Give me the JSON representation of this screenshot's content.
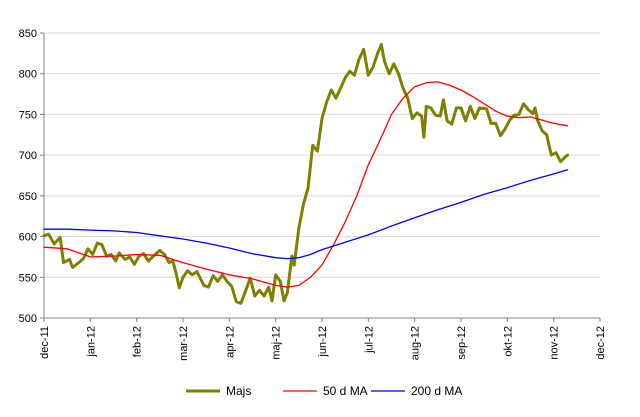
{
  "chart_data": {
    "type": "line",
    "title": "",
    "xlabel": "",
    "ylabel": "",
    "ylim": [
      500,
      850
    ],
    "yticks": [
      500,
      550,
      600,
      650,
      700,
      750,
      800,
      850
    ],
    "x_ticks": [
      {
        "label": "dec-11",
        "x": 0
      },
      {
        "label": "jan-12",
        "x": 1
      },
      {
        "label": "feb-12",
        "x": 2
      },
      {
        "label": "mar-12",
        "x": 3
      },
      {
        "label": "apr-12",
        "x": 4
      },
      {
        "label": "maj-12",
        "x": 5
      },
      {
        "label": "jun-12",
        "x": 6
      },
      {
        "label": "jul-12",
        "x": 7
      },
      {
        "label": "aug-12",
        "x": 8
      },
      {
        "label": "sep-12",
        "x": 9
      },
      {
        "label": "okt-12",
        "x": 10
      },
      {
        "label": "nov-12",
        "x": 11
      },
      {
        "label": "dec-12",
        "x": 12
      }
    ],
    "xlim": [
      0,
      12
    ],
    "grid": "horizontal",
    "legend_position": "bottom",
    "series": [
      {
        "name": "Majs",
        "color": "#808000",
        "width": 3,
        "points": [
          [
            0.0,
            601
          ],
          [
            0.1,
            603
          ],
          [
            0.22,
            591
          ],
          [
            0.35,
            599
          ],
          [
            0.42,
            568
          ],
          [
            0.55,
            572
          ],
          [
            0.62,
            562
          ],
          [
            0.75,
            568
          ],
          [
            0.85,
            573
          ],
          [
            0.95,
            585
          ],
          [
            1.05,
            578
          ],
          [
            1.15,
            592
          ],
          [
            1.25,
            590
          ],
          [
            1.35,
            576
          ],
          [
            1.45,
            578
          ],
          [
            1.55,
            570
          ],
          [
            1.62,
            580
          ],
          [
            1.75,
            572
          ],
          [
            1.85,
            575
          ],
          [
            1.95,
            566
          ],
          [
            2.05,
            576
          ],
          [
            2.15,
            579
          ],
          [
            2.25,
            570
          ],
          [
            2.4,
            578
          ],
          [
            2.5,
            583
          ],
          [
            2.6,
            578
          ],
          [
            2.7,
            568
          ],
          [
            2.78,
            570
          ],
          [
            2.85,
            555
          ],
          [
            2.92,
            537
          ],
          [
            3.0,
            550
          ],
          [
            3.1,
            558
          ],
          [
            3.2,
            553
          ],
          [
            3.3,
            557
          ],
          [
            3.45,
            540
          ],
          [
            3.55,
            538
          ],
          [
            3.65,
            552
          ],
          [
            3.75,
            545
          ],
          [
            3.85,
            553
          ],
          [
            3.95,
            545
          ],
          [
            4.05,
            539
          ],
          [
            4.15,
            520
          ],
          [
            4.25,
            518
          ],
          [
            4.35,
            533
          ],
          [
            4.45,
            549
          ],
          [
            4.55,
            527
          ],
          [
            4.65,
            534
          ],
          [
            4.75,
            527
          ],
          [
            4.85,
            538
          ],
          [
            4.92,
            521
          ],
          [
            5.0,
            553
          ],
          [
            5.1,
            545
          ],
          [
            5.18,
            521
          ],
          [
            5.25,
            531
          ],
          [
            5.35,
            576
          ],
          [
            5.4,
            565
          ],
          [
            5.5,
            610
          ],
          [
            5.6,
            640
          ],
          [
            5.7,
            660
          ],
          [
            5.8,
            712
          ],
          [
            5.9,
            705
          ],
          [
            6.0,
            745
          ],
          [
            6.1,
            765
          ],
          [
            6.2,
            780
          ],
          [
            6.3,
            770
          ],
          [
            6.4,
            782
          ],
          [
            6.5,
            795
          ],
          [
            6.6,
            803
          ],
          [
            6.7,
            798
          ],
          [
            6.8,
            818
          ],
          [
            6.9,
            830
          ],
          [
            7.0,
            798
          ],
          [
            7.1,
            808
          ],
          [
            7.2,
            825
          ],
          [
            7.28,
            836
          ],
          [
            7.35,
            815
          ],
          [
            7.45,
            800
          ],
          [
            7.55,
            812
          ],
          [
            7.65,
            800
          ],
          [
            7.75,
            782
          ],
          [
            7.85,
            770
          ],
          [
            7.95,
            745
          ],
          [
            8.05,
            752
          ],
          [
            8.15,
            748
          ],
          [
            8.2,
            722
          ],
          [
            8.25,
            760
          ],
          [
            8.35,
            758
          ],
          [
            8.45,
            749
          ],
          [
            8.55,
            748
          ],
          [
            8.62,
            768
          ],
          [
            8.7,
            742
          ],
          [
            8.8,
            738
          ],
          [
            8.9,
            758
          ],
          [
            9.0,
            758
          ],
          [
            9.1,
            742
          ],
          [
            9.2,
            760
          ],
          [
            9.3,
            745
          ],
          [
            9.4,
            758
          ],
          [
            9.55,
            757
          ],
          [
            9.65,
            739
          ],
          [
            9.75,
            739
          ],
          [
            9.85,
            724
          ],
          [
            9.95,
            732
          ],
          [
            10.05,
            743
          ],
          [
            10.15,
            749
          ],
          [
            10.25,
            750
          ],
          [
            10.35,
            763
          ],
          [
            10.45,
            756
          ],
          [
            10.55,
            751
          ],
          [
            10.6,
            758
          ],
          [
            10.65,
            743
          ],
          [
            10.75,
            730
          ],
          [
            10.85,
            725
          ],
          [
            10.95,
            700
          ],
          [
            11.05,
            703
          ],
          [
            11.15,
            692
          ],
          [
            11.25,
            698
          ],
          [
            11.3,
            700
          ]
        ]
      },
      {
        "name": "50 d MA",
        "color": "#ff0000",
        "width": 1.3,
        "points": [
          [
            0.0,
            587
          ],
          [
            0.5,
            585
          ],
          [
            1.0,
            575
          ],
          [
            1.5,
            576
          ],
          [
            2.0,
            578
          ],
          [
            2.5,
            577
          ],
          [
            3.0,
            568
          ],
          [
            3.5,
            560
          ],
          [
            4.0,
            553
          ],
          [
            4.5,
            548
          ],
          [
            5.0,
            540
          ],
          [
            5.25,
            538
          ],
          [
            5.5,
            540
          ],
          [
            5.75,
            550
          ],
          [
            6.0,
            565
          ],
          [
            6.25,
            590
          ],
          [
            6.5,
            618
          ],
          [
            6.75,
            650
          ],
          [
            7.0,
            688
          ],
          [
            7.25,
            718
          ],
          [
            7.5,
            750
          ],
          [
            7.75,
            770
          ],
          [
            8.0,
            784
          ],
          [
            8.25,
            789
          ],
          [
            8.5,
            790
          ],
          [
            8.75,
            786
          ],
          [
            9.0,
            780
          ],
          [
            9.25,
            772
          ],
          [
            9.5,
            763
          ],
          [
            9.75,
            754
          ],
          [
            10.0,
            748
          ],
          [
            10.25,
            746
          ],
          [
            10.5,
            747
          ],
          [
            10.75,
            743
          ],
          [
            11.0,
            739
          ],
          [
            11.3,
            736
          ]
        ]
      },
      {
        "name": "200 d MA",
        "color": "#0000ff",
        "width": 1.3,
        "points": [
          [
            0.0,
            609
          ],
          [
            0.5,
            609
          ],
          [
            1.0,
            608
          ],
          [
            1.5,
            607
          ],
          [
            2.0,
            605
          ],
          [
            2.5,
            601
          ],
          [
            3.0,
            597
          ],
          [
            3.5,
            592
          ],
          [
            4.0,
            586
          ],
          [
            4.5,
            579
          ],
          [
            5.0,
            574
          ],
          [
            5.25,
            573
          ],
          [
            5.5,
            574
          ],
          [
            5.75,
            578
          ],
          [
            6.0,
            584
          ],
          [
            6.5,
            593
          ],
          [
            7.0,
            602
          ],
          [
            7.5,
            613
          ],
          [
            8.0,
            623
          ],
          [
            8.5,
            633
          ],
          [
            9.0,
            642
          ],
          [
            9.5,
            652
          ],
          [
            10.0,
            660
          ],
          [
            10.5,
            669
          ],
          [
            11.0,
            677
          ],
          [
            11.3,
            682
          ]
        ]
      }
    ]
  }
}
